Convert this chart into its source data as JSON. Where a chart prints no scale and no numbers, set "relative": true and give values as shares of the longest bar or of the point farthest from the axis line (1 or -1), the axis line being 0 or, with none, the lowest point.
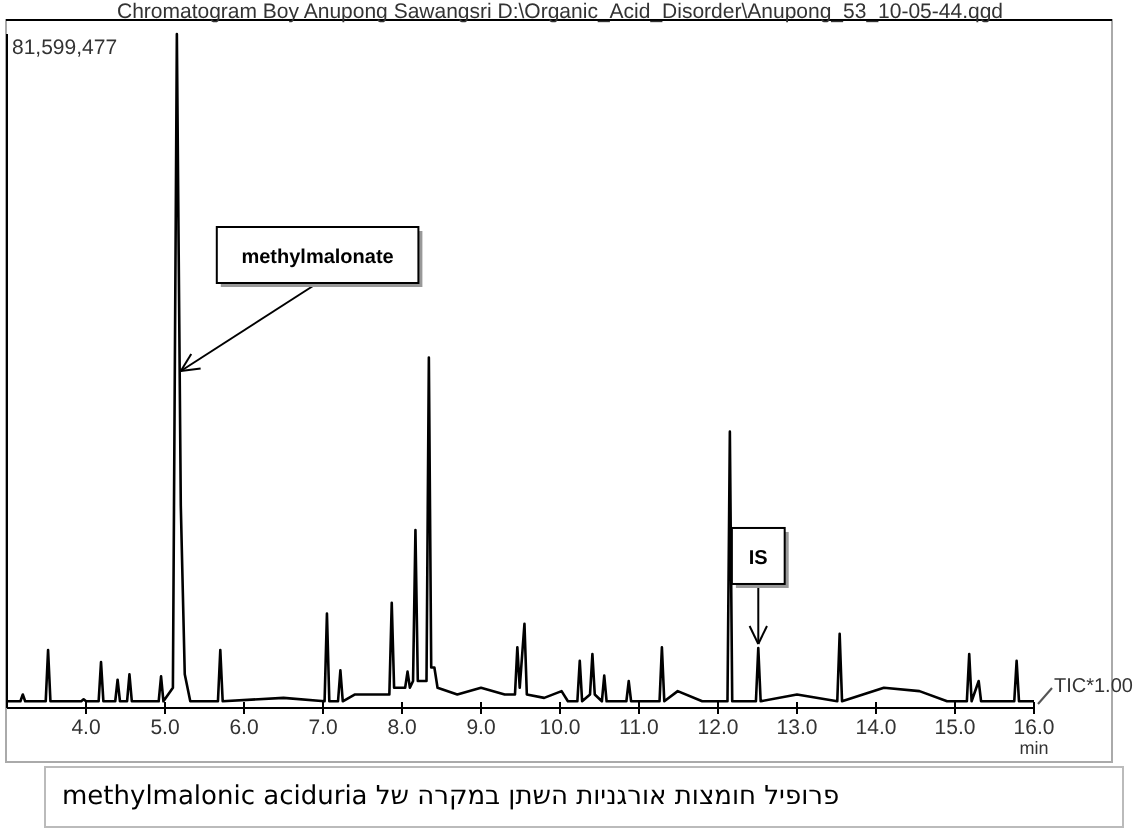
{
  "chart_data": {
    "type": "line",
    "relative": true,
    "color": "#000000",
    "title": "Chromatogram Boy Anupong Sawangsri D:\\Organic_Acid_Disorder\\Anupong_53_10-05-44.qgd",
    "xlabel": "min",
    "xlim": [
      3.0,
      16.0
    ],
    "xticks": [
      {
        "value": 4,
        "label": "4.0"
      },
      {
        "value": 5,
        "label": "5.0"
      },
      {
        "value": 6,
        "label": "6.0"
      },
      {
        "value": 7,
        "label": "7.0"
      },
      {
        "value": 8,
        "label": "8.0"
      },
      {
        "value": 9,
        "label": "9.0"
      },
      {
        "value": 10,
        "label": "10.0"
      },
      {
        "value": 11,
        "label": "11.0"
      },
      {
        "value": 12,
        "label": "12.0"
      },
      {
        "value": 13,
        "label": "13.0"
      },
      {
        "value": 14,
        "label": "14.0"
      },
      {
        "value": 15,
        "label": "15.0"
      },
      {
        "value": 16,
        "label": "16.0"
      }
    ],
    "x": [
      3.0,
      3.17,
      3.2,
      3.23,
      3.49,
      3.52,
      3.55,
      3.94,
      3.97,
      4.0,
      4.16,
      4.19,
      4.22,
      4.37,
      4.4,
      4.43,
      4.52,
      4.55,
      4.58,
      4.92,
      4.95,
      4.98,
      5.1,
      5.15,
      5.2,
      5.25,
      5.32,
      5.67,
      5.7,
      5.73,
      6.5,
      7.02,
      7.05,
      7.08,
      7.19,
      7.22,
      7.25,
      7.4,
      7.84,
      7.87,
      7.9,
      8.04,
      8.07,
      8.1,
      8.14,
      8.17,
      8.2,
      8.31,
      8.34,
      8.37,
      8.41,
      8.45,
      8.7,
      9.0,
      9.3,
      9.43,
      9.46,
      9.49,
      9.55,
      9.58,
      9.8,
      10.02,
      10.1,
      10.22,
      10.25,
      10.28,
      10.38,
      10.41,
      10.44,
      10.53,
      10.56,
      10.59,
      10.84,
      10.87,
      10.9,
      11.26,
      11.29,
      11.32,
      11.49,
      11.8,
      12.12,
      12.15,
      12.18,
      12.48,
      12.51,
      12.54,
      13.0,
      13.51,
      13.54,
      13.57,
      14.1,
      14.55,
      14.9,
      15.15,
      15.18,
      15.21,
      15.3,
      15.33,
      15.75,
      15.78,
      15.81,
      16.0
    ],
    "values": [
      0.01,
      0.01,
      0.02,
      0.01,
      0.01,
      0.086,
      0.01,
      0.01,
      0.013,
      0.01,
      0.01,
      0.068,
      0.01,
      0.01,
      0.042,
      0.01,
      0.01,
      0.05,
      0.01,
      0.01,
      0.047,
      0.01,
      0.03,
      1.0,
      0.3,
      0.05,
      0.01,
      0.01,
      0.086,
      0.01,
      0.015,
      0.01,
      0.14,
      0.01,
      0.01,
      0.056,
      0.01,
      0.02,
      0.02,
      0.156,
      0.03,
      0.03,
      0.054,
      0.03,
      0.04,
      0.264,
      0.04,
      0.04,
      0.52,
      0.06,
      0.06,
      0.03,
      0.02,
      0.03,
      0.02,
      0.02,
      0.09,
      0.03,
      0.125,
      0.02,
      0.015,
      0.025,
      0.01,
      0.01,
      0.07,
      0.01,
      0.02,
      0.08,
      0.02,
      0.01,
      0.048,
      0.01,
      0.01,
      0.04,
      0.01,
      0.01,
      0.09,
      0.01,
      0.025,
      0.01,
      0.01,
      0.41,
      0.01,
      0.01,
      0.089,
      0.01,
      0.02,
      0.01,
      0.11,
      0.01,
      0.03,
      0.025,
      0.01,
      0.01,
      0.08,
      0.01,
      0.04,
      0.01,
      0.01,
      0.07,
      0.01,
      0.01
    ],
    "annotations": [
      {
        "text": "methylmalonate",
        "x": 5.2,
        "y": 0.5
      },
      {
        "text": "IS",
        "x": 12.51,
        "y": 0.095
      },
      "81,599,477",
      "TIC*1.00",
      "פרופיל חומצות אורגניות השתן במקרה של methylmalonic aciduria"
    ]
  }
}
